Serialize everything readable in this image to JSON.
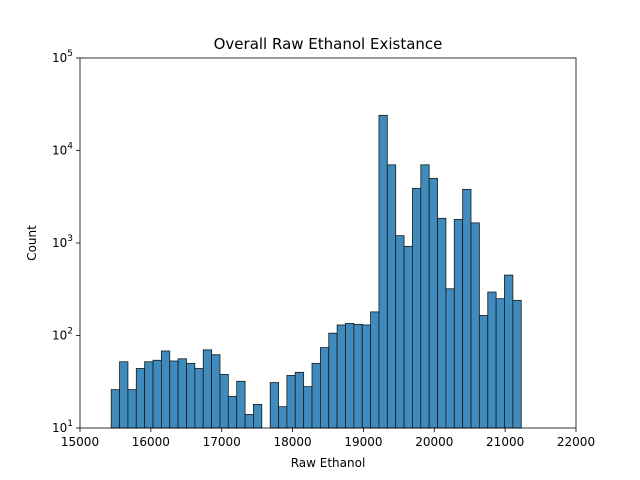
{
  "chart_data": {
    "type": "bar",
    "title": "Overall Raw Ethanol Existance",
    "xlabel": "Raw Ethanol",
    "ylabel": "Count",
    "xlim": [
      15000,
      22000
    ],
    "ylim": [
      10,
      100000
    ],
    "yscale": "log",
    "grid": false,
    "color": "#3f8bbd",
    "xticks": [
      "15000",
      "16000",
      "17000",
      "18000",
      "19000",
      "20000",
      "21000",
      "22000"
    ],
    "yticks": [
      {
        "value": 10,
        "base": "10",
        "exp": "1"
      },
      {
        "value": 100,
        "base": "10",
        "exp": "2"
      },
      {
        "value": 1000,
        "base": "10",
        "exp": "3"
      },
      {
        "value": 10000,
        "base": "10",
        "exp": "4"
      },
      {
        "value": 100000,
        "base": "10",
        "exp": "5"
      }
    ],
    "bin_start": 15440,
    "bin_width": 118.1,
    "values": [
      26,
      52,
      26,
      44,
      52,
      54,
      68,
      53,
      56,
      50,
      44,
      70,
      62,
      38,
      22,
      32,
      14,
      18,
      10,
      31,
      17,
      37,
      40,
      28,
      50,
      74,
      106,
      130,
      135,
      132,
      130,
      180,
      24000,
      7000,
      1200,
      920,
      3900,
      7000,
      5000,
      1850,
      320,
      1800,
      3800,
      1650,
      165,
      295,
      250,
      450,
      240
    ]
  }
}
